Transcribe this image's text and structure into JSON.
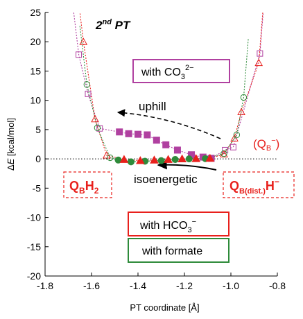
{
  "chart_data": {
    "type": "scatter",
    "title": "2nd PT",
    "title_parts": {
      "prefix": "2",
      "superscript": "nd",
      "suffix": " PT"
    },
    "xlabel": "PT coordinate [Å]",
    "ylabel": "ΔE [kcal/mol]",
    "xlim": [
      -1.8,
      -0.8
    ],
    "ylim": [
      -20,
      25
    ],
    "xticks": [
      -1.8,
      -1.6,
      -1.4,
      -1.2,
      -1.0,
      -0.8
    ],
    "xtick_labels": [
      "-1.8",
      "-1.6",
      "-1.4",
      "-1.2",
      "-1.0",
      "-0.8"
    ],
    "yticks": [
      -20,
      -15,
      -10,
      -5,
      0,
      5,
      10,
      15,
      20,
      25
    ],
    "ytick_labels": [
      "-20",
      "-15",
      "-10",
      "-5",
      "0",
      "5",
      "10",
      "15",
      "20",
      "25"
    ],
    "zero_line": true,
    "grid": false,
    "colors": {
      "magenta": "#b040a0",
      "red": "#e8201c",
      "green": "#2e8b3a",
      "black": "#000000"
    },
    "series": [
      {
        "key": "co3",
        "color": "#b040a0",
        "marker": "square",
        "open_points": [
          {
            "x": -1.655,
            "y": 17.8
          },
          {
            "x": -1.615,
            "y": 11.1
          },
          {
            "x": -1.565,
            "y": 5.2
          },
          {
            "x": -1.025,
            "y": 1.5
          },
          {
            "x": -0.99,
            "y": 2.0
          },
          {
            "x": -0.875,
            "y": 18.0
          }
        ],
        "filled_points": [
          {
            "x": -1.48,
            "y": 4.6
          },
          {
            "x": -1.44,
            "y": 4.3
          },
          {
            "x": -1.4,
            "y": 4.2
          },
          {
            "x": -1.36,
            "y": 4.1
          },
          {
            "x": -1.32,
            "y": 3.2
          },
          {
            "x": -1.28,
            "y": 2.4
          },
          {
            "x": -1.23,
            "y": 1.5
          },
          {
            "x": -1.17,
            "y": 0.7
          },
          {
            "x": -1.12,
            "y": 0.3
          },
          {
            "x": -1.085,
            "y": 0.1
          }
        ]
      },
      {
        "key": "hco3",
        "color": "#e8201c",
        "marker": "triangle",
        "open_points": [
          {
            "x": -1.635,
            "y": 20.0
          },
          {
            "x": -1.585,
            "y": 6.8
          },
          {
            "x": -1.535,
            "y": 0.6
          },
          {
            "x": -1.03,
            "y": 0.8
          },
          {
            "x": -0.985,
            "y": 3.5
          },
          {
            "x": -0.955,
            "y": 8.0
          },
          {
            "x": -0.88,
            "y": 16.4
          }
        ],
        "filled_points": [
          {
            "x": -1.46,
            "y": -0.1
          },
          {
            "x": -1.39,
            "y": -0.3
          },
          {
            "x": -1.33,
            "y": -0.2
          },
          {
            "x": -1.27,
            "y": -0.1
          },
          {
            "x": -1.21,
            "y": 0.0
          },
          {
            "x": -1.15,
            "y": 0.05
          },
          {
            "x": -1.09,
            "y": 0.1
          }
        ]
      },
      {
        "key": "formate",
        "color": "#2e8b3a",
        "marker": "circle",
        "open_points": [
          {
            "x": -1.62,
            "y": 12.7
          },
          {
            "x": -1.575,
            "y": 5.3
          },
          {
            "x": -1.52,
            "y": 0.2
          },
          {
            "x": -1.03,
            "y": 0.9
          },
          {
            "x": -0.975,
            "y": 4.1
          },
          {
            "x": -0.945,
            "y": 10.5
          }
        ],
        "filled_points": [
          {
            "x": -1.485,
            "y": -0.2
          },
          {
            "x": -1.43,
            "y": -0.5
          },
          {
            "x": -1.37,
            "y": -0.4
          },
          {
            "x": -1.3,
            "y": -0.3
          },
          {
            "x": -1.24,
            "y": -0.1
          },
          {
            "x": -1.18,
            "y": 0.0
          },
          {
            "x": -1.11,
            "y": 0.05
          }
        ]
      }
    ],
    "annotations": {
      "uphill": "uphill",
      "isoenergetic": "isoenergetic",
      "qb_minus_text": "(Q",
      "qb_minus_sub": "B",
      "qb_minus_sup": "−",
      "qb_minus_close": ")",
      "qbh2_main": "Q",
      "qbh2_sub": "B",
      "qbh2_tail": "H",
      "qbh2_tail_sub": "2",
      "qbdist_main": "Q",
      "qbdist_sub": "B(dist.)",
      "qbdist_tail": "H",
      "qbdist_sup": "−"
    },
    "legend_boxes": {
      "co3": {
        "prefix": "with CO",
        "sub": "3",
        "sup": "2−"
      },
      "hco3": {
        "prefix": "with HCO",
        "sub": "3",
        "sup": "−"
      },
      "formate": {
        "prefix": "with formate"
      }
    }
  }
}
